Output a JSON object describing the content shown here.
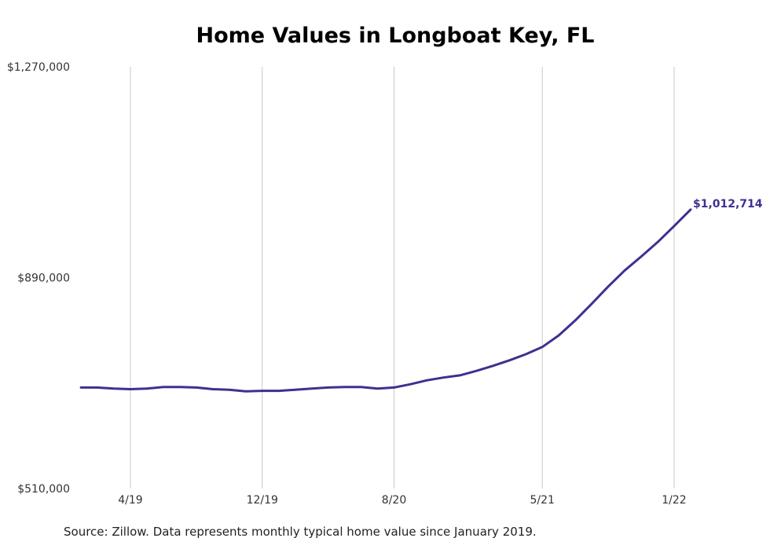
{
  "chart_data": {
    "type": "line",
    "title": "Home Values in Longboat Key, FL",
    "ylim": [
      510000,
      1270000
    ],
    "y_ticks": [
      {
        "value": 1270000,
        "label": "$1,270,000"
      },
      {
        "value": 890000,
        "label": "$890,000"
      },
      {
        "value": 510000,
        "label": "$510,000"
      }
    ],
    "x_ticks": [
      {
        "date": "2019-04",
        "label": "4/19"
      },
      {
        "date": "2019-12",
        "label": "12/19"
      },
      {
        "date": "2020-08",
        "label": "8/20"
      },
      {
        "date": "2021-05",
        "label": "5/21"
      },
      {
        "date": "2022-01",
        "label": "1/22"
      }
    ],
    "grid": "vertical",
    "line_color": "#3d3190",
    "series": [
      {
        "x": [
          "2019-01",
          "2019-02",
          "2019-03",
          "2019-04",
          "2019-05",
          "2019-06",
          "2019-07",
          "2019-08",
          "2019-09",
          "2019-10",
          "2019-11",
          "2019-12",
          "2020-01",
          "2020-02",
          "2020-03",
          "2020-04",
          "2020-05",
          "2020-06",
          "2020-07",
          "2020-08",
          "2020-09",
          "2020-10",
          "2020-11",
          "2020-12",
          "2021-01",
          "2021-02",
          "2021-03",
          "2021-04",
          "2021-05",
          "2021-06",
          "2021-07",
          "2021-08",
          "2021-09",
          "2021-10",
          "2021-11",
          "2021-12",
          "2022-01",
          "2022-02"
        ],
        "values": [
          692000,
          692000,
          690000,
          689000,
          690000,
          693000,
          693000,
          692000,
          689000,
          688000,
          685000,
          686000,
          686000,
          688000,
          690000,
          692000,
          693000,
          693000,
          690000,
          692000,
          698000,
          705000,
          710000,
          714000,
          722000,
          731000,
          741000,
          752000,
          765000,
          786000,
          813000,
          843000,
          874000,
          903000,
          928000,
          954000,
          983000,
          1012714
        ]
      }
    ],
    "end_label": "$1,012,714"
  },
  "footer": {
    "source": "Source: Zillow. Data represents monthly typical home value since January 2019."
  }
}
